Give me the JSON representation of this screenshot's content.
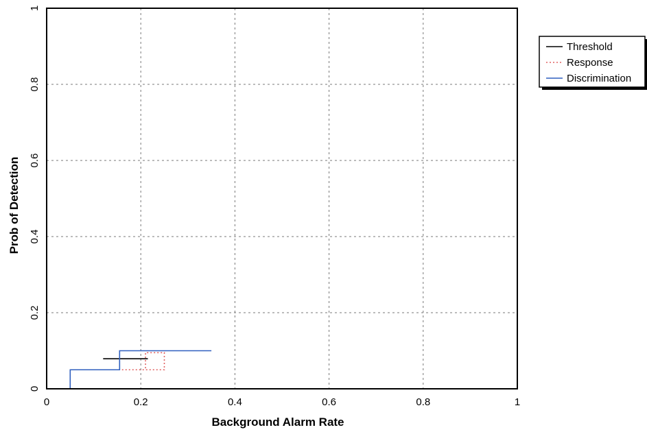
{
  "chart_data": {
    "type": "line",
    "title": "",
    "xlabel": "Background Alarm Rate",
    "ylabel": "Prob of Detection",
    "xlim": [
      0,
      1
    ],
    "ylim": [
      0,
      1
    ],
    "xticks": [
      0,
      0.2,
      0.4,
      0.6,
      0.8,
      1
    ],
    "yticks": [
      0,
      0.2,
      0.4,
      0.6,
      0.8,
      1
    ],
    "xtick_labels": [
      "0",
      "0.2",
      "0.4",
      "0.6",
      "0.8",
      "1"
    ],
    "ytick_labels": [
      "0",
      "0.2",
      "0.4",
      "0.6",
      "0.8",
      "1"
    ],
    "grid": true,
    "legend_position": "top-right, outside plot",
    "series": [
      {
        "name": "Threshold",
        "style": "solid",
        "color": "#000000",
        "x": [
          0.12,
          0.215
        ],
        "y": [
          0.079,
          0.079
        ]
      },
      {
        "name": "Response",
        "style": "dotted",
        "color": "#e06060",
        "x": [
          0.16,
          0.25,
          0.25,
          0.21,
          0.21
        ],
        "y": [
          0.05,
          0.05,
          0.095,
          0.095,
          0.05
        ]
      },
      {
        "name": "Discrimination",
        "style": "solid",
        "color": "#2f5fbf",
        "x": [
          0.05,
          0.05,
          0.155,
          0.155,
          0.35
        ],
        "y": [
          0,
          0.05,
          0.05,
          0.1,
          0.1
        ]
      }
    ]
  }
}
